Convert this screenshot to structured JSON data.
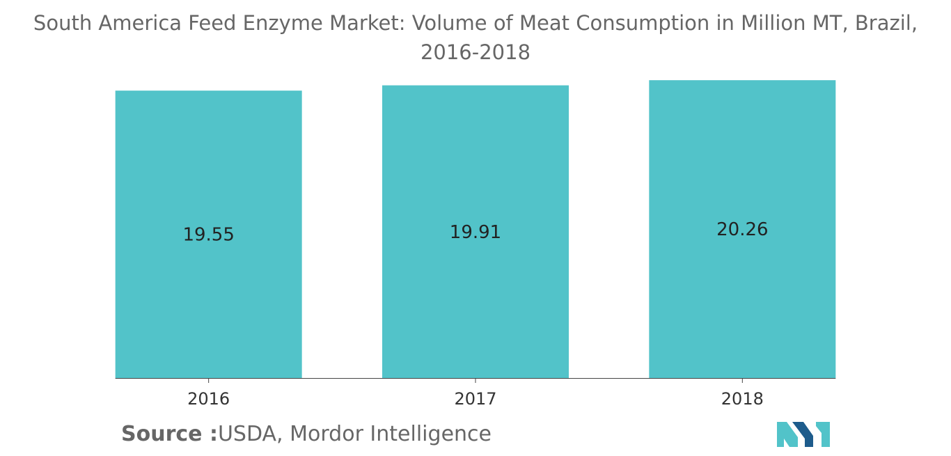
{
  "title_lines": [
    "South America Feed Enzyme Market: Volume of Meat Consumption in Million MT, Brazil,",
    "2016-2018"
  ],
  "source": {
    "label": "Source :",
    "text": "USDA, Mordor Intelligence"
  },
  "logo": {
    "name": "mordor-intelligence-logo"
  },
  "colors": {
    "bar": "#52C3C9",
    "axis": "#444444",
    "logo_dark": "#1E5C8C",
    "logo_light": "#52C3C9"
  },
  "chart_data": {
    "type": "bar",
    "title": "South America Feed Enzyme Market: Volume of Meat Consumption in Million MT, Brazil, 2016-2018",
    "categories": [
      "2016",
      "2017",
      "2018"
    ],
    "values": [
      19.55,
      19.91,
      20.26
    ],
    "value_labels": [
      "19.55",
      "19.91",
      "20.26"
    ],
    "xlabel": "",
    "ylabel": "",
    "ylim": [
      0,
      20.6
    ],
    "grid": false,
    "legend": "none"
  }
}
